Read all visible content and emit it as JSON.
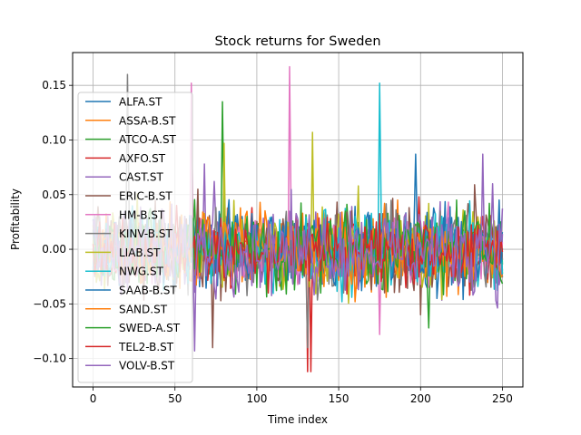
{
  "chart_data": {
    "type": "line",
    "title": "Stock returns for Sweden",
    "xlabel": "Time index",
    "ylabel": "Profitability",
    "xlim": [
      -12.5,
      262.5
    ],
    "ylim": [
      -0.126,
      0.18
    ],
    "xticks": [
      0,
      50,
      100,
      150,
      200,
      250
    ],
    "yticks": [
      -0.1,
      -0.05,
      0.0,
      0.05,
      0.1,
      0.15
    ],
    "xtick_labels": [
      "0",
      "50",
      "100",
      "150",
      "200",
      "250"
    ],
    "ytick_labels": [
      "−0.10",
      "−0.05",
      "0.00",
      "0.05",
      "0.10",
      "0.15"
    ],
    "grid": true,
    "legend_position": "left",
    "n_points": 251,
    "series": [
      {
        "name": "ALFA.ST",
        "color": "#1f77b4",
        "scale": 0.018,
        "spikes": [
          [
            197,
            0.087
          ],
          [
            210,
            -0.045
          ]
        ]
      },
      {
        "name": "ASSA-B.ST",
        "color": "#ff7f0e",
        "scale": 0.017,
        "spikes": [
          [
            186,
            0.045
          ],
          [
            160,
            -0.048
          ]
        ]
      },
      {
        "name": "ATCO-A.ST",
        "color": "#2ca02c",
        "scale": 0.018,
        "spikes": [
          [
            79,
            0.135
          ],
          [
            205,
            -0.072
          ],
          [
            222,
            0.045
          ]
        ]
      },
      {
        "name": "AXFO.ST",
        "color": "#d62728",
        "scale": 0.014,
        "spikes": [
          [
            131,
            -0.112
          ],
          [
            133,
            -0.112
          ],
          [
            199,
            0.048
          ]
        ]
      },
      {
        "name": "CAST.ST",
        "color": "#9467bd",
        "scale": 0.018,
        "spikes": [
          [
            62,
            -0.093
          ],
          [
            68,
            0.078
          ],
          [
            74,
            0.062
          ]
        ]
      },
      {
        "name": "ERIC-B.ST",
        "color": "#8c564b",
        "scale": 0.02,
        "spikes": [
          [
            73,
            -0.09
          ],
          [
            200,
            -0.06
          ],
          [
            233,
            0.059
          ]
        ]
      },
      {
        "name": "HM-B.ST",
        "color": "#e377c2",
        "scale": 0.016,
        "spikes": [
          [
            60,
            0.152
          ],
          [
            120,
            0.167
          ],
          [
            175,
            -0.078
          ]
        ]
      },
      {
        "name": "KINV-B.ST",
        "color": "#7f7f7f",
        "scale": 0.019,
        "spikes": [
          [
            21,
            0.16
          ],
          [
            131,
            -0.09
          ]
        ]
      },
      {
        "name": "LIAB.ST",
        "color": "#bcbd22",
        "scale": 0.018,
        "spikes": [
          [
            80,
            0.097
          ],
          [
            134,
            0.107
          ],
          [
            162,
            0.058
          ],
          [
            213,
            -0.046
          ]
        ]
      },
      {
        "name": "NWG.ST",
        "color": "#17becf",
        "scale": 0.017,
        "spikes": [
          [
            175,
            0.152
          ],
          [
            152,
            -0.048
          ]
        ]
      },
      {
        "name": "SAAB-B.ST",
        "color": "#1f77b4",
        "scale": 0.016,
        "spikes": [
          [
            226,
            -0.046
          ],
          [
            248,
            0.045
          ]
        ]
      },
      {
        "name": "SAND.ST",
        "color": "#ff7f0e",
        "scale": 0.016,
        "spikes": [
          [
            102,
            0.043
          ],
          [
            179,
            -0.044
          ]
        ]
      },
      {
        "name": "SWED-A.ST",
        "color": "#2ca02c",
        "scale": 0.017,
        "spikes": [
          [
            118,
            -0.041
          ],
          [
            242,
            0.042
          ]
        ]
      },
      {
        "name": "TEL2-B.ST",
        "color": "#d62728",
        "scale": 0.015,
        "spikes": [
          [
            107,
            -0.04
          ],
          [
            230,
            -0.042
          ]
        ]
      },
      {
        "name": "VOLV-B.ST",
        "color": "#9467bd",
        "scale": 0.019,
        "spikes": [
          [
            238,
            0.087
          ],
          [
            244,
            0.06
          ],
          [
            246,
            -0.047
          ],
          [
            230,
            -0.03
          ]
        ]
      }
    ]
  }
}
